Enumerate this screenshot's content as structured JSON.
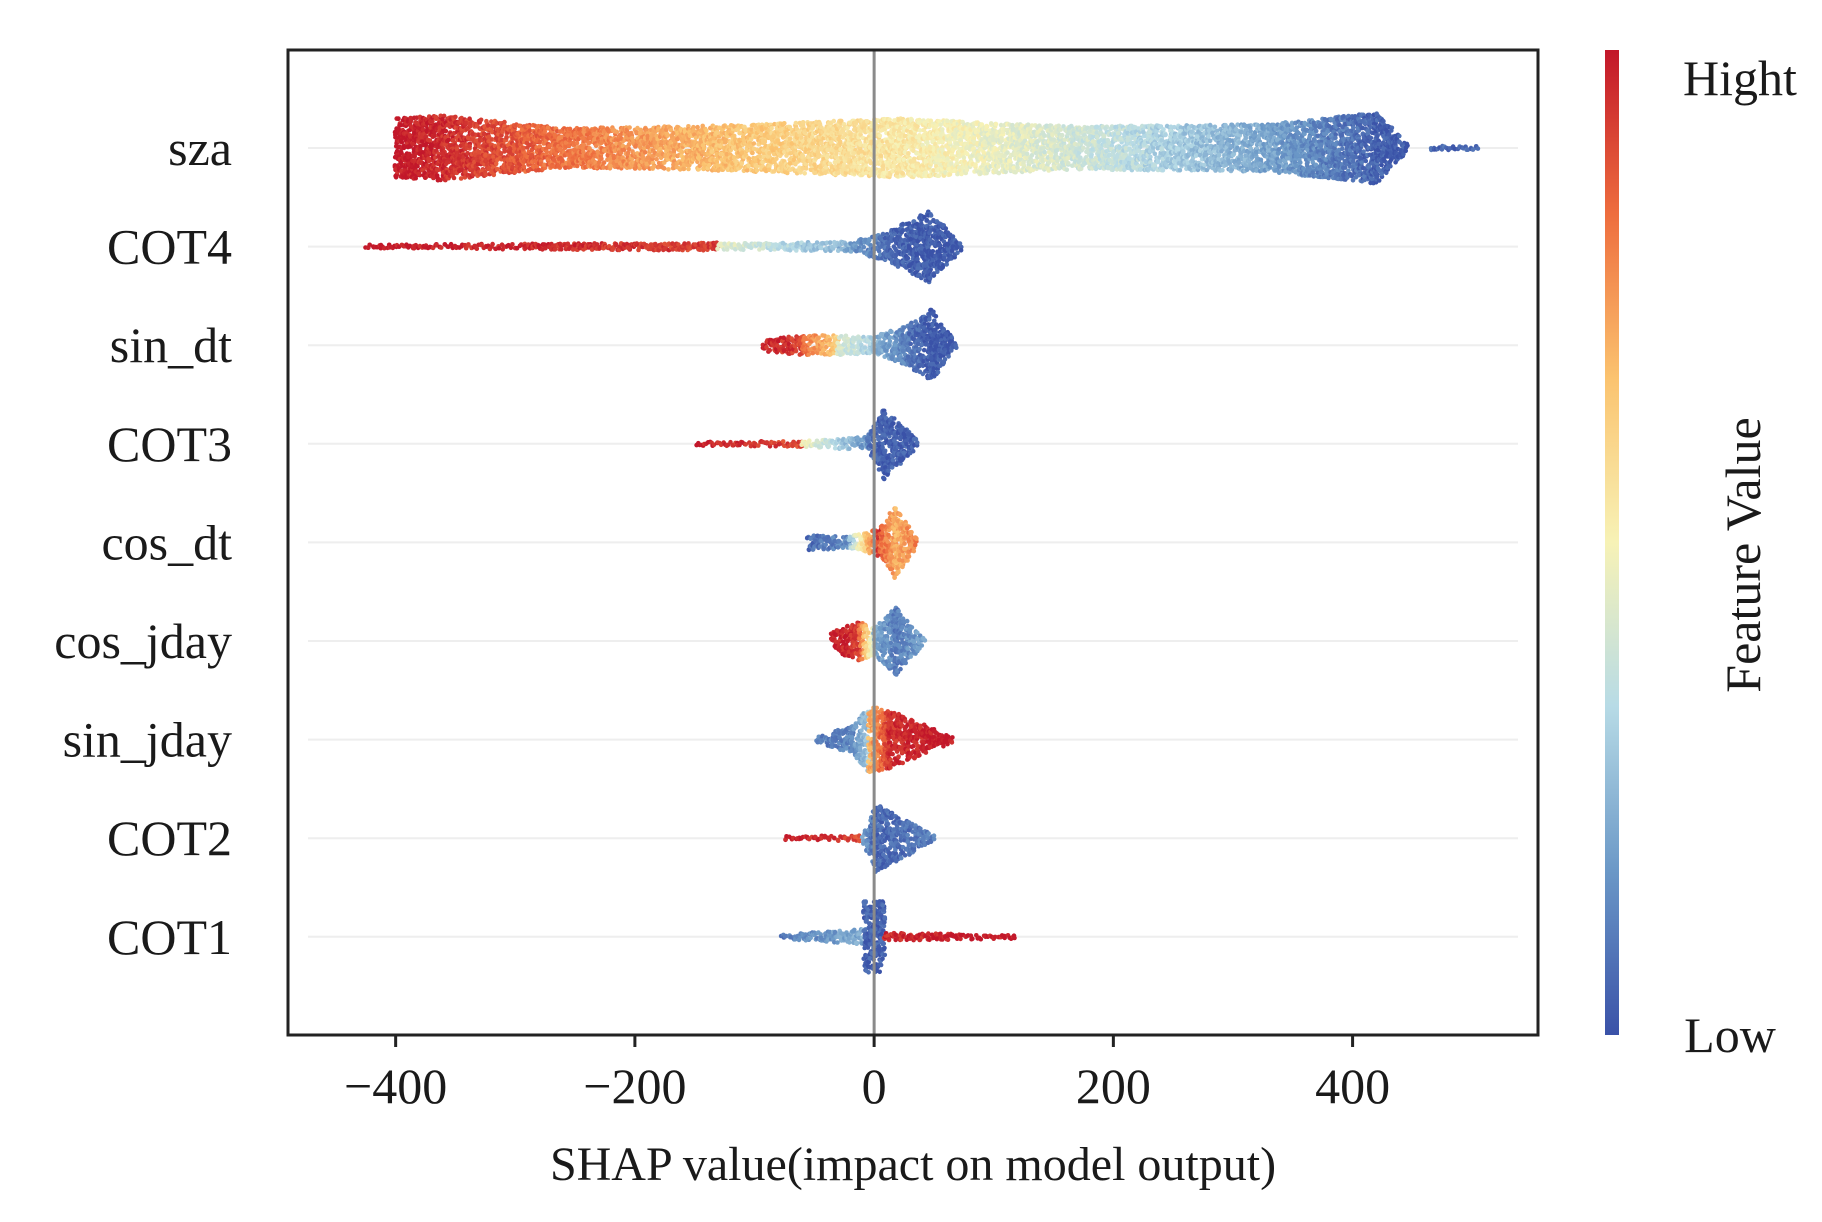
{
  "chart_data": {
    "type": "scatter",
    "subtype": "shap-beeswarm",
    "title": "",
    "xlabel": "SHAP value(impact on model output)",
    "ylabel": "",
    "xlim": [
      -490,
      555
    ],
    "xticks": [
      -400,
      -200,
      0,
      200,
      400
    ],
    "xtick_labels": [
      "−400",
      "−200",
      "0",
      "200",
      "400"
    ],
    "grid": false,
    "colorbar": {
      "label": "Feature Value",
      "high_label": "Hight",
      "low_label": "Low",
      "colors": [
        "#3a52a8",
        "#6b98c7",
        "#b7dbe6",
        "#f7f2b6",
        "#fbc36f",
        "#ee6d3e",
        "#c2172a"
      ]
    },
    "features": [
      {
        "name": "sza",
        "max_halfwidth": 0.36,
        "segments": [
          {
            "x0": -400,
            "x1": -360,
            "w0": 0.3,
            "w1": 0.33,
            "c0": 1.0,
            "c1": 0.96
          },
          {
            "x0": -360,
            "x1": -260,
            "w0": 0.33,
            "w1": 0.2,
            "c0": 0.96,
            "c1": 0.82
          },
          {
            "x0": -260,
            "x1": -120,
            "w0": 0.2,
            "w1": 0.23,
            "c0": 0.82,
            "c1": 0.66
          },
          {
            "x0": -120,
            "x1": 20,
            "w0": 0.23,
            "w1": 0.3,
            "c0": 0.66,
            "c1": 0.54
          },
          {
            "x0": 20,
            "x1": 170,
            "w0": 0.3,
            "w1": 0.22,
            "c0": 0.54,
            "c1": 0.4
          },
          {
            "x0": 170,
            "x1": 330,
            "w0": 0.22,
            "w1": 0.24,
            "c0": 0.4,
            "c1": 0.2
          },
          {
            "x0": 330,
            "x1": 420,
            "w0": 0.24,
            "w1": 0.36,
            "c0": 0.2,
            "c1": 0.04
          },
          {
            "x0": 420,
            "x1": 445,
            "w0": 0.36,
            "w1": 0.05,
            "c0": 0.04,
            "c1": 0.02
          },
          {
            "x0": 465,
            "x1": 505,
            "w0": 0.02,
            "w1": 0.02,
            "c0": 0.05,
            "c1": 0.05
          }
        ]
      },
      {
        "name": "COT4",
        "max_halfwidth": 0.36,
        "segments": [
          {
            "x0": -425,
            "x1": -130,
            "w0": 0.02,
            "w1": 0.04,
            "c0": 1.0,
            "c1": 0.92
          },
          {
            "x0": -130,
            "x1": -20,
            "w0": 0.03,
            "w1": 0.05,
            "c0": 0.45,
            "c1": 0.22
          },
          {
            "x0": -20,
            "x1": 10,
            "w0": 0.05,
            "w1": 0.14,
            "c0": 0.18,
            "c1": 0.08
          },
          {
            "x0": 10,
            "x1": 45,
            "w0": 0.14,
            "w1": 0.36,
            "c0": 0.06,
            "c1": 0.02
          },
          {
            "x0": 45,
            "x1": 72,
            "w0": 0.36,
            "w1": 0.05,
            "c0": 0.02,
            "c1": 0.02
          }
        ]
      },
      {
        "name": "sin_dt",
        "max_halfwidth": 0.36,
        "segments": [
          {
            "x0": -92,
            "x1": -60,
            "w0": 0.06,
            "w1": 0.1,
            "c0": 0.98,
            "c1": 0.92
          },
          {
            "x0": -60,
            "x1": -30,
            "w0": 0.1,
            "w1": 0.1,
            "c0": 0.84,
            "c1": 0.62
          },
          {
            "x0": -30,
            "x1": 0,
            "w0": 0.1,
            "w1": 0.08,
            "c0": 0.42,
            "c1": 0.3
          },
          {
            "x0": 0,
            "x1": 30,
            "w0": 0.08,
            "w1": 0.22,
            "c0": 0.24,
            "c1": 0.1
          },
          {
            "x0": 30,
            "x1": 48,
            "w0": 0.22,
            "w1": 0.36,
            "c0": 0.08,
            "c1": 0.02
          },
          {
            "x0": 48,
            "x1": 68,
            "w0": 0.36,
            "w1": 0.04,
            "c0": 0.02,
            "c1": 0.02
          }
        ]
      },
      {
        "name": "COT3",
        "max_halfwidth": 0.36,
        "segments": [
          {
            "x0": -148,
            "x1": -60,
            "w0": 0.02,
            "w1": 0.03,
            "c0": 1.0,
            "c1": 0.9
          },
          {
            "x0": -60,
            "x1": -5,
            "w0": 0.03,
            "w1": 0.07,
            "c0": 0.5,
            "c1": 0.15
          },
          {
            "x0": -5,
            "x1": 8,
            "w0": 0.07,
            "w1": 0.36,
            "c0": 0.08,
            "c1": 0.03
          },
          {
            "x0": 8,
            "x1": 35,
            "w0": 0.36,
            "w1": 0.05,
            "c0": 0.03,
            "c1": 0.03
          }
        ]
      },
      {
        "name": "cos_dt",
        "max_halfwidth": 0.36,
        "segments": [
          {
            "x0": -55,
            "x1": -20,
            "w0": 0.08,
            "w1": 0.06,
            "c0": 0.06,
            "c1": 0.14
          },
          {
            "x0": -20,
            "x1": 5,
            "w0": 0.06,
            "w1": 0.14,
            "c0": 0.3,
            "c1": 0.95
          },
          {
            "x0": 5,
            "x1": 18,
            "w0": 0.14,
            "w1": 0.36,
            "c0": 0.85,
            "c1": 0.72
          },
          {
            "x0": 18,
            "x1": 35,
            "w0": 0.36,
            "w1": 0.05,
            "c0": 0.7,
            "c1": 0.8
          }
        ]
      },
      {
        "name": "cos_jday",
        "max_halfwidth": 0.36,
        "segments": [
          {
            "x0": -35,
            "x1": -12,
            "w0": 0.1,
            "w1": 0.2,
            "c0": 1.0,
            "c1": 0.92
          },
          {
            "x0": -12,
            "x1": 0,
            "w0": 0.2,
            "w1": 0.14,
            "c0": 0.85,
            "c1": 0.4
          },
          {
            "x0": 0,
            "x1": 18,
            "w0": 0.14,
            "w1": 0.34,
            "c0": 0.22,
            "c1": 0.1
          },
          {
            "x0": 18,
            "x1": 42,
            "w0": 0.34,
            "w1": 0.03,
            "c0": 0.1,
            "c1": 0.2
          }
        ]
      },
      {
        "name": "sin_jday",
        "max_halfwidth": 0.36,
        "segments": [
          {
            "x0": -48,
            "x1": -18,
            "w0": 0.03,
            "w1": 0.14,
            "c0": 0.1,
            "c1": 0.12
          },
          {
            "x0": -18,
            "x1": -4,
            "w0": 0.14,
            "w1": 0.34,
            "c0": 0.14,
            "c1": 0.3
          },
          {
            "x0": -4,
            "x1": 12,
            "w0": 0.34,
            "w1": 0.3,
            "c0": 0.7,
            "c1": 0.92
          },
          {
            "x0": 12,
            "x1": 65,
            "w0": 0.3,
            "w1": 0.03,
            "c0": 0.95,
            "c1": 1.0
          }
        ]
      },
      {
        "name": "COT2",
        "max_halfwidth": 0.36,
        "segments": [
          {
            "x0": -75,
            "x1": -10,
            "w0": 0.02,
            "w1": 0.03,
            "c0": 1.0,
            "c1": 0.9
          },
          {
            "x0": -10,
            "x1": 2,
            "w0": 0.03,
            "w1": 0.34,
            "c0": 0.2,
            "c1": 0.05
          },
          {
            "x0": 2,
            "x1": 50,
            "w0": 0.34,
            "w1": 0.03,
            "c0": 0.05,
            "c1": 0.1
          }
        ]
      },
      {
        "name": "COT1",
        "max_halfwidth": 0.36,
        "segments": [
          {
            "x0": -78,
            "x1": -8,
            "w0": 0.02,
            "w1": 0.08,
            "c0": 0.1,
            "c1": 0.22
          },
          {
            "x0": -8,
            "x1": 8,
            "w0": 0.36,
            "w1": 0.36,
            "c0": 0.04,
            "c1": 0.04
          },
          {
            "x0": 8,
            "x1": 118,
            "w0": 0.04,
            "w1": 0.02,
            "c0": 0.96,
            "c1": 1.0
          }
        ]
      }
    ]
  }
}
